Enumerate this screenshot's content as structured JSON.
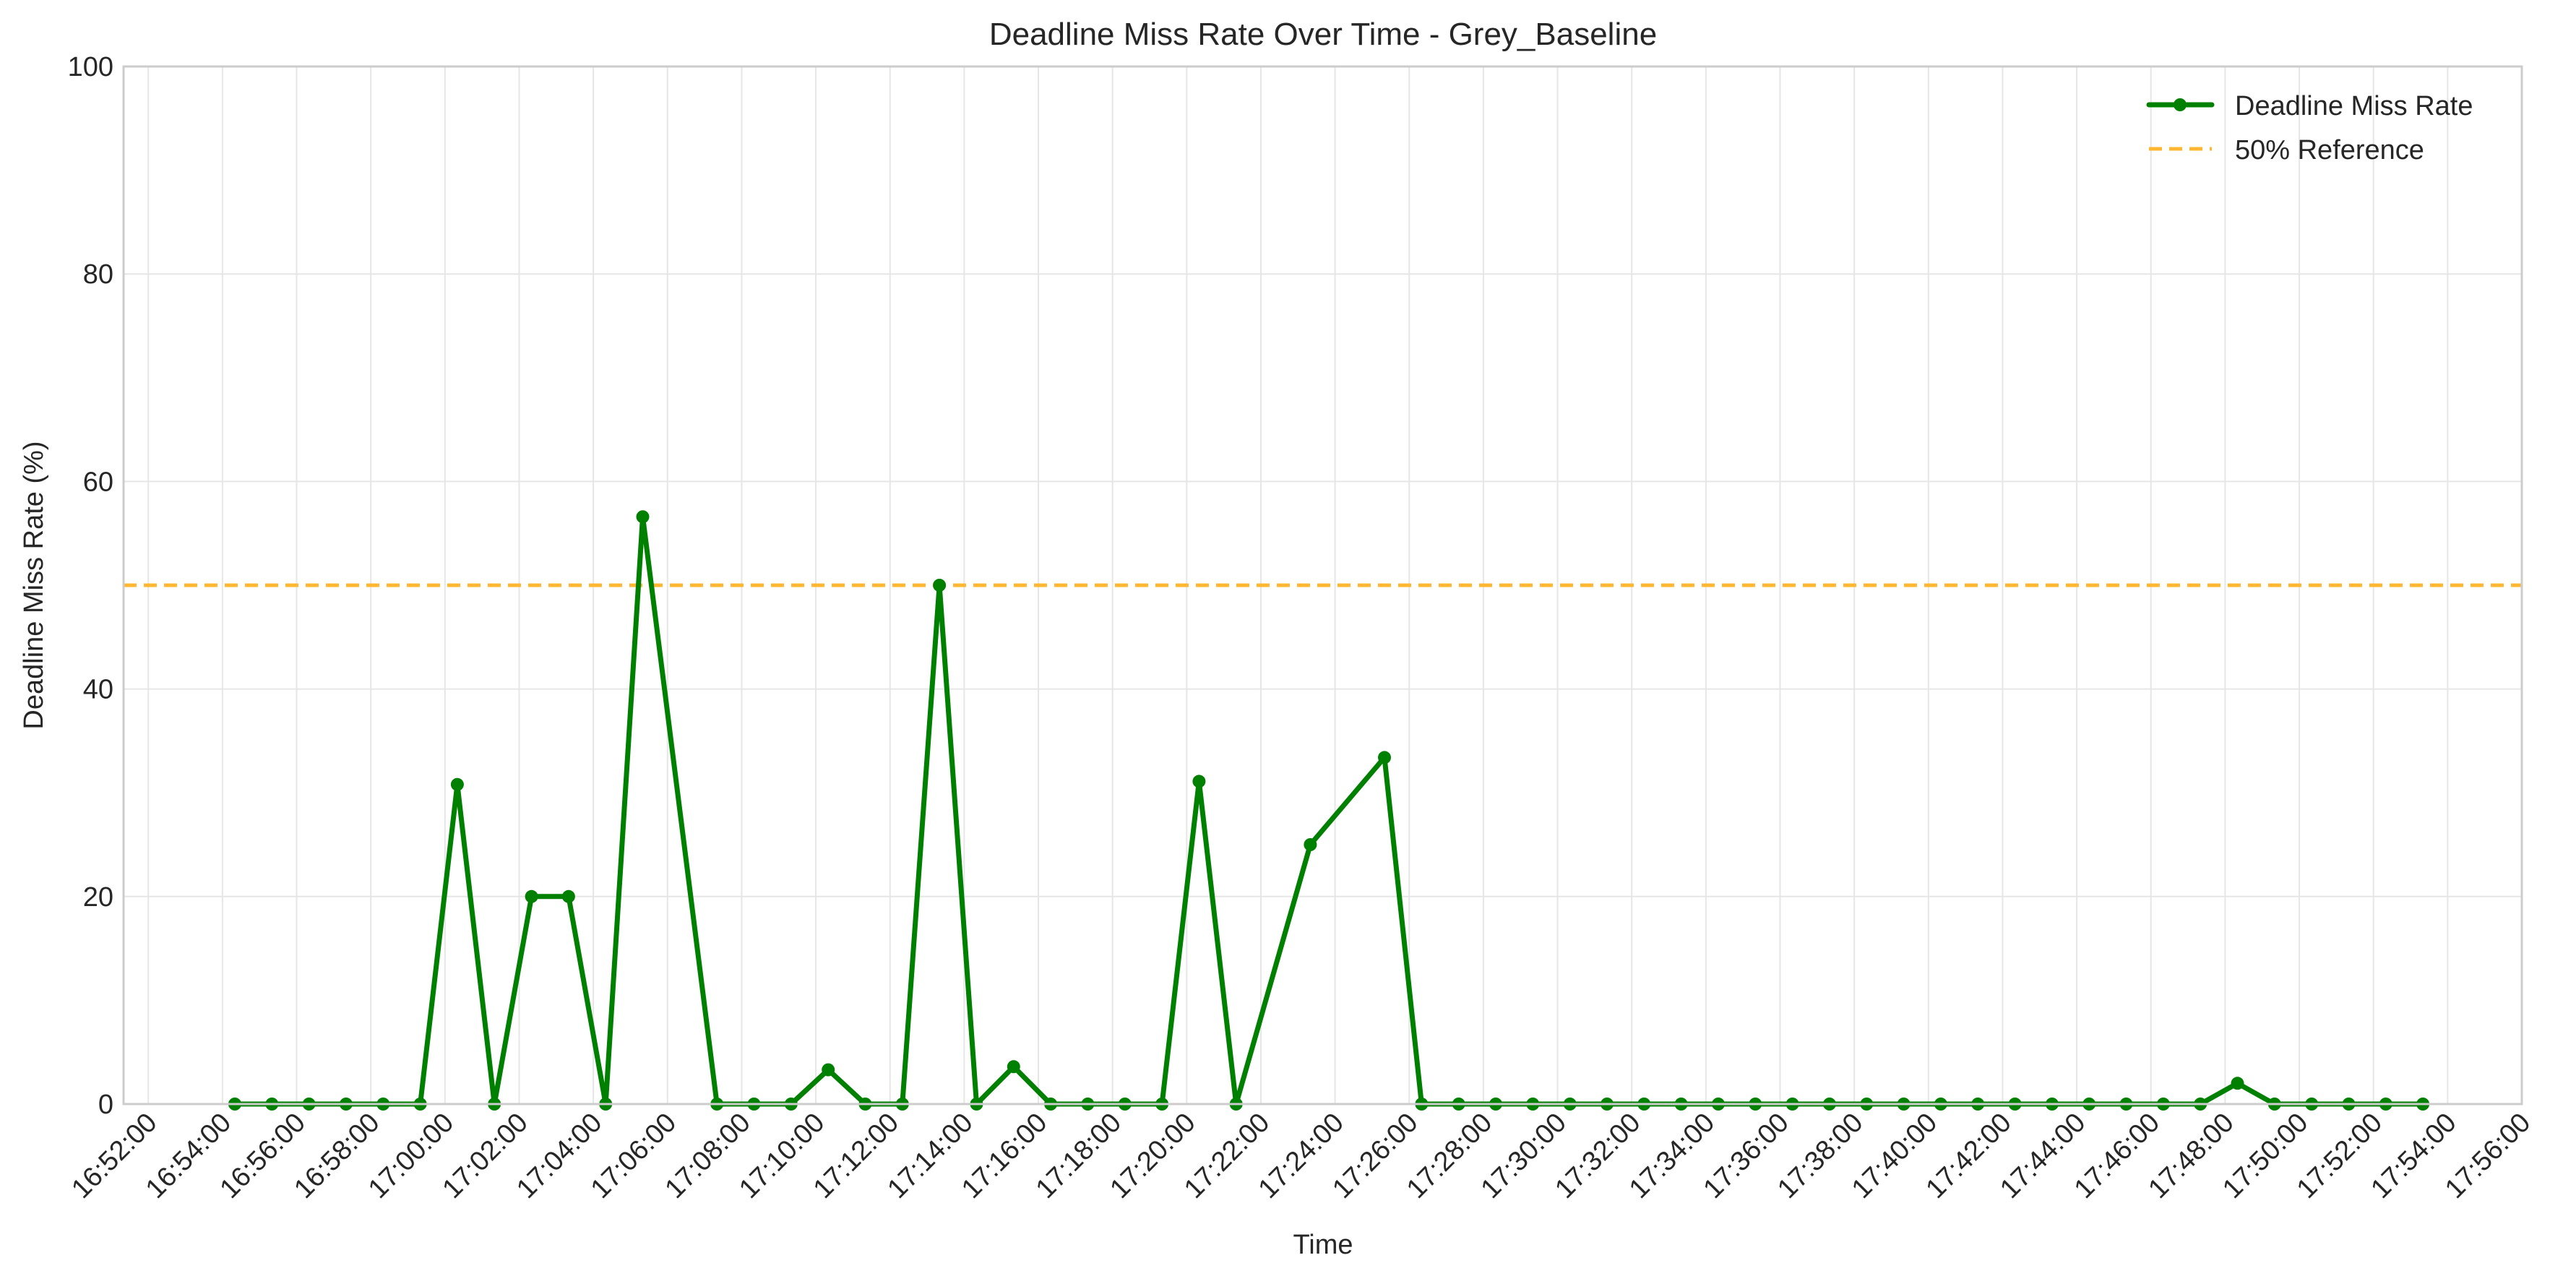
{
  "chart_data": {
    "type": "line",
    "title": "Deadline Miss Rate Over Time - Grey_Baseline",
    "xlabel": "Time",
    "ylabel": "Deadline Miss Rate (%)",
    "ylim": [
      0,
      100
    ],
    "yticks": [
      0,
      20,
      40,
      60,
      80,
      100
    ],
    "xlim": [
      "16:51:20",
      "17:56:00"
    ],
    "xticks": [
      "16:52:00",
      "16:54:00",
      "16:56:00",
      "16:58:00",
      "17:00:00",
      "17:02:00",
      "17:04:00",
      "17:06:00",
      "17:08:00",
      "17:10:00",
      "17:12:00",
      "17:14:00",
      "17:16:00",
      "17:18:00",
      "17:20:00",
      "17:22:00",
      "17:24:00",
      "17:26:00",
      "17:28:00",
      "17:30:00",
      "17:32:00",
      "17:34:00",
      "17:36:00",
      "17:38:00",
      "17:40:00",
      "17:42:00",
      "17:44:00",
      "17:46:00",
      "17:48:00",
      "17:50:00",
      "17:52:00",
      "17:54:00",
      "17:56:00"
    ],
    "grid": true,
    "legend_position": "top-right",
    "series": [
      {
        "name": "Deadline Miss Rate",
        "color": "#008000",
        "x": [
          "16:54:20",
          "16:55:20",
          "16:56:20",
          "16:57:20",
          "16:58:20",
          "16:59:20",
          "17:00:20",
          "17:01:20",
          "17:02:20",
          "17:03:20",
          "17:04:20",
          "17:05:20",
          "17:07:20",
          "17:08:20",
          "17:09:20",
          "17:10:20",
          "17:11:20",
          "17:12:20",
          "17:13:20",
          "17:14:20",
          "17:15:20",
          "17:16:20",
          "17:17:20",
          "17:18:20",
          "17:19:20",
          "17:20:20",
          "17:21:20",
          "17:23:20",
          "17:25:20",
          "17:26:20",
          "17:27:20",
          "17:28:20",
          "17:29:20",
          "17:30:20",
          "17:31:20",
          "17:32:20",
          "17:33:20",
          "17:34:20",
          "17:35:20",
          "17:36:20",
          "17:37:20",
          "17:38:20",
          "17:39:20",
          "17:40:20",
          "17:41:20",
          "17:42:20",
          "17:43:20",
          "17:44:20",
          "17:45:20",
          "17:46:20",
          "17:47:20",
          "17:48:20",
          "17:49:20",
          "17:50:20",
          "17:51:20",
          "17:52:20",
          "17:53:20"
        ],
        "values": [
          0,
          0,
          0,
          0,
          0,
          0,
          30.8,
          0,
          20,
          20,
          0,
          56.6,
          0,
          0,
          0,
          3.3,
          0,
          0,
          50,
          0,
          3.6,
          0,
          0,
          0,
          0,
          31.1,
          0,
          25,
          33.4,
          0,
          0,
          0,
          0,
          0,
          0,
          0,
          0,
          0,
          0,
          0,
          0,
          0,
          0,
          0,
          0,
          0,
          0,
          0,
          0,
          0,
          0,
          2,
          0,
          0,
          0,
          0,
          0
        ]
      }
    ],
    "reference_line": {
      "name": "50% Reference",
      "value": 50,
      "color": "#FFB732"
    }
  }
}
